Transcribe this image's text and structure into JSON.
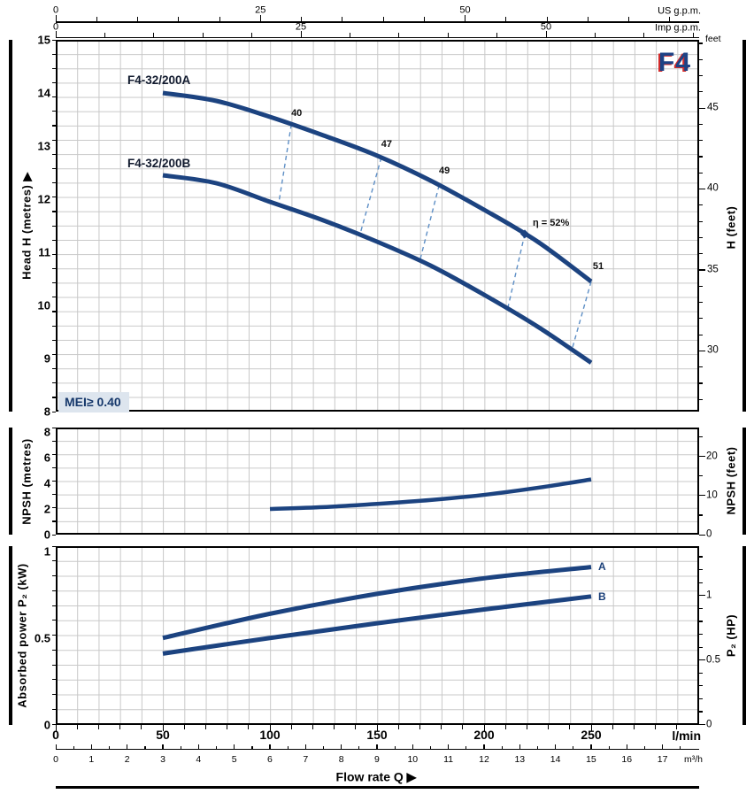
{
  "meta": {
    "badge": "F4",
    "mei": "MEI≥ 0.40"
  },
  "titles": {
    "head_left": "Head H  (metres) ▶",
    "head_right": "H  (feet)",
    "feet_unit": "feet",
    "npsh_left": "NPSH (metres)",
    "npsh_right": "NPSH (feet)",
    "p2_left": "Absorbed power  P₂  (kW)",
    "p2_right": "P₂  (HP)",
    "flow": "Flow rate Q  ▶",
    "us_unit": "US g.p.m.",
    "imp_unit": "Imp g.p.m.",
    "lmin_unit": "l/min",
    "m3h_unit": "m³/h"
  },
  "axis_labels": {
    "us_gpm": [
      0,
      25,
      50
    ],
    "imp_gpm": [
      0,
      25,
      50
    ],
    "lmin": [
      0,
      50,
      100,
      150,
      200,
      250
    ],
    "m3h": [
      0,
      1,
      2,
      3,
      4,
      5,
      6,
      7,
      8,
      9,
      10,
      11,
      12,
      13,
      14,
      15,
      16,
      17
    ],
    "head_m": [
      8,
      9,
      10,
      11,
      12,
      13,
      14,
      15
    ],
    "head_ft": [
      30,
      35,
      40,
      45
    ],
    "npsh_m": [
      0,
      2,
      4,
      6,
      8
    ],
    "npsh_ft": [
      0,
      10,
      20
    ],
    "p2_kw": [
      "0",
      "0.5",
      "1"
    ],
    "p2_hp": [
      "0",
      "0.5",
      "1"
    ]
  },
  "chart_data": [
    {
      "type": "line",
      "title": "Head H vs Flow rate Q",
      "xlabel": "Flow rate Q (l/min)",
      "ylabel": "Head H (metres)",
      "xlim": [
        0,
        300
      ],
      "ylim": [
        8,
        15
      ],
      "grid": true,
      "series": [
        {
          "name": "F4-32/200A",
          "x": [
            50,
            75,
            100,
            125,
            150,
            175,
            200,
            225,
            250
          ],
          "y": [
            14.0,
            13.85,
            13.55,
            13.2,
            12.82,
            12.35,
            11.8,
            11.2,
            10.45
          ]
        },
        {
          "name": "F4-32/200B",
          "x": [
            50,
            75,
            100,
            125,
            150,
            175,
            200,
            225,
            250
          ],
          "y": [
            12.45,
            12.3,
            11.95,
            11.6,
            11.2,
            10.75,
            10.2,
            9.6,
            8.92
          ]
        }
      ],
      "efficiency_lines": [
        {
          "label": "40",
          "q_top": 110,
          "q_bottom": 104
        },
        {
          "label": "47",
          "q_top": 152,
          "q_bottom": 142
        },
        {
          "label": "49",
          "q_top": 179,
          "q_bottom": 170
        },
        {
          "label": "η = 52%",
          "q_top": 219,
          "q_bottom": 211,
          "marker": true
        },
        {
          "label": "51",
          "q_top": 250,
          "q_bottom": 241
        }
      ]
    },
    {
      "type": "line",
      "title": "NPSH vs Flow rate Q",
      "xlabel": "Flow rate Q (l/min)",
      "ylabel": "NPSH (metres)",
      "xlim": [
        0,
        300
      ],
      "ylim": [
        0,
        8.3
      ],
      "grid": true,
      "series": [
        {
          "name": "NPSH",
          "x": [
            100,
            125,
            150,
            175,
            200,
            225,
            250
          ],
          "y": [
            2.0,
            2.15,
            2.4,
            2.7,
            3.1,
            3.65,
            4.3
          ]
        }
      ]
    },
    {
      "type": "line",
      "title": "Absorbed power P2 vs Flow rate Q",
      "xlabel": "Flow rate Q (l/min)",
      "ylabel": "P2 (kW)",
      "xlim": [
        0,
        300
      ],
      "ylim": [
        0,
        1.03
      ],
      "grid": true,
      "series": [
        {
          "name": "A",
          "x": [
            50,
            100,
            150,
            200,
            250
          ],
          "y": [
            0.5,
            0.64,
            0.755,
            0.845,
            0.91
          ]
        },
        {
          "name": "B",
          "x": [
            50,
            100,
            150,
            200,
            250
          ],
          "y": [
            0.41,
            0.5,
            0.585,
            0.665,
            0.74
          ]
        }
      ]
    }
  ]
}
